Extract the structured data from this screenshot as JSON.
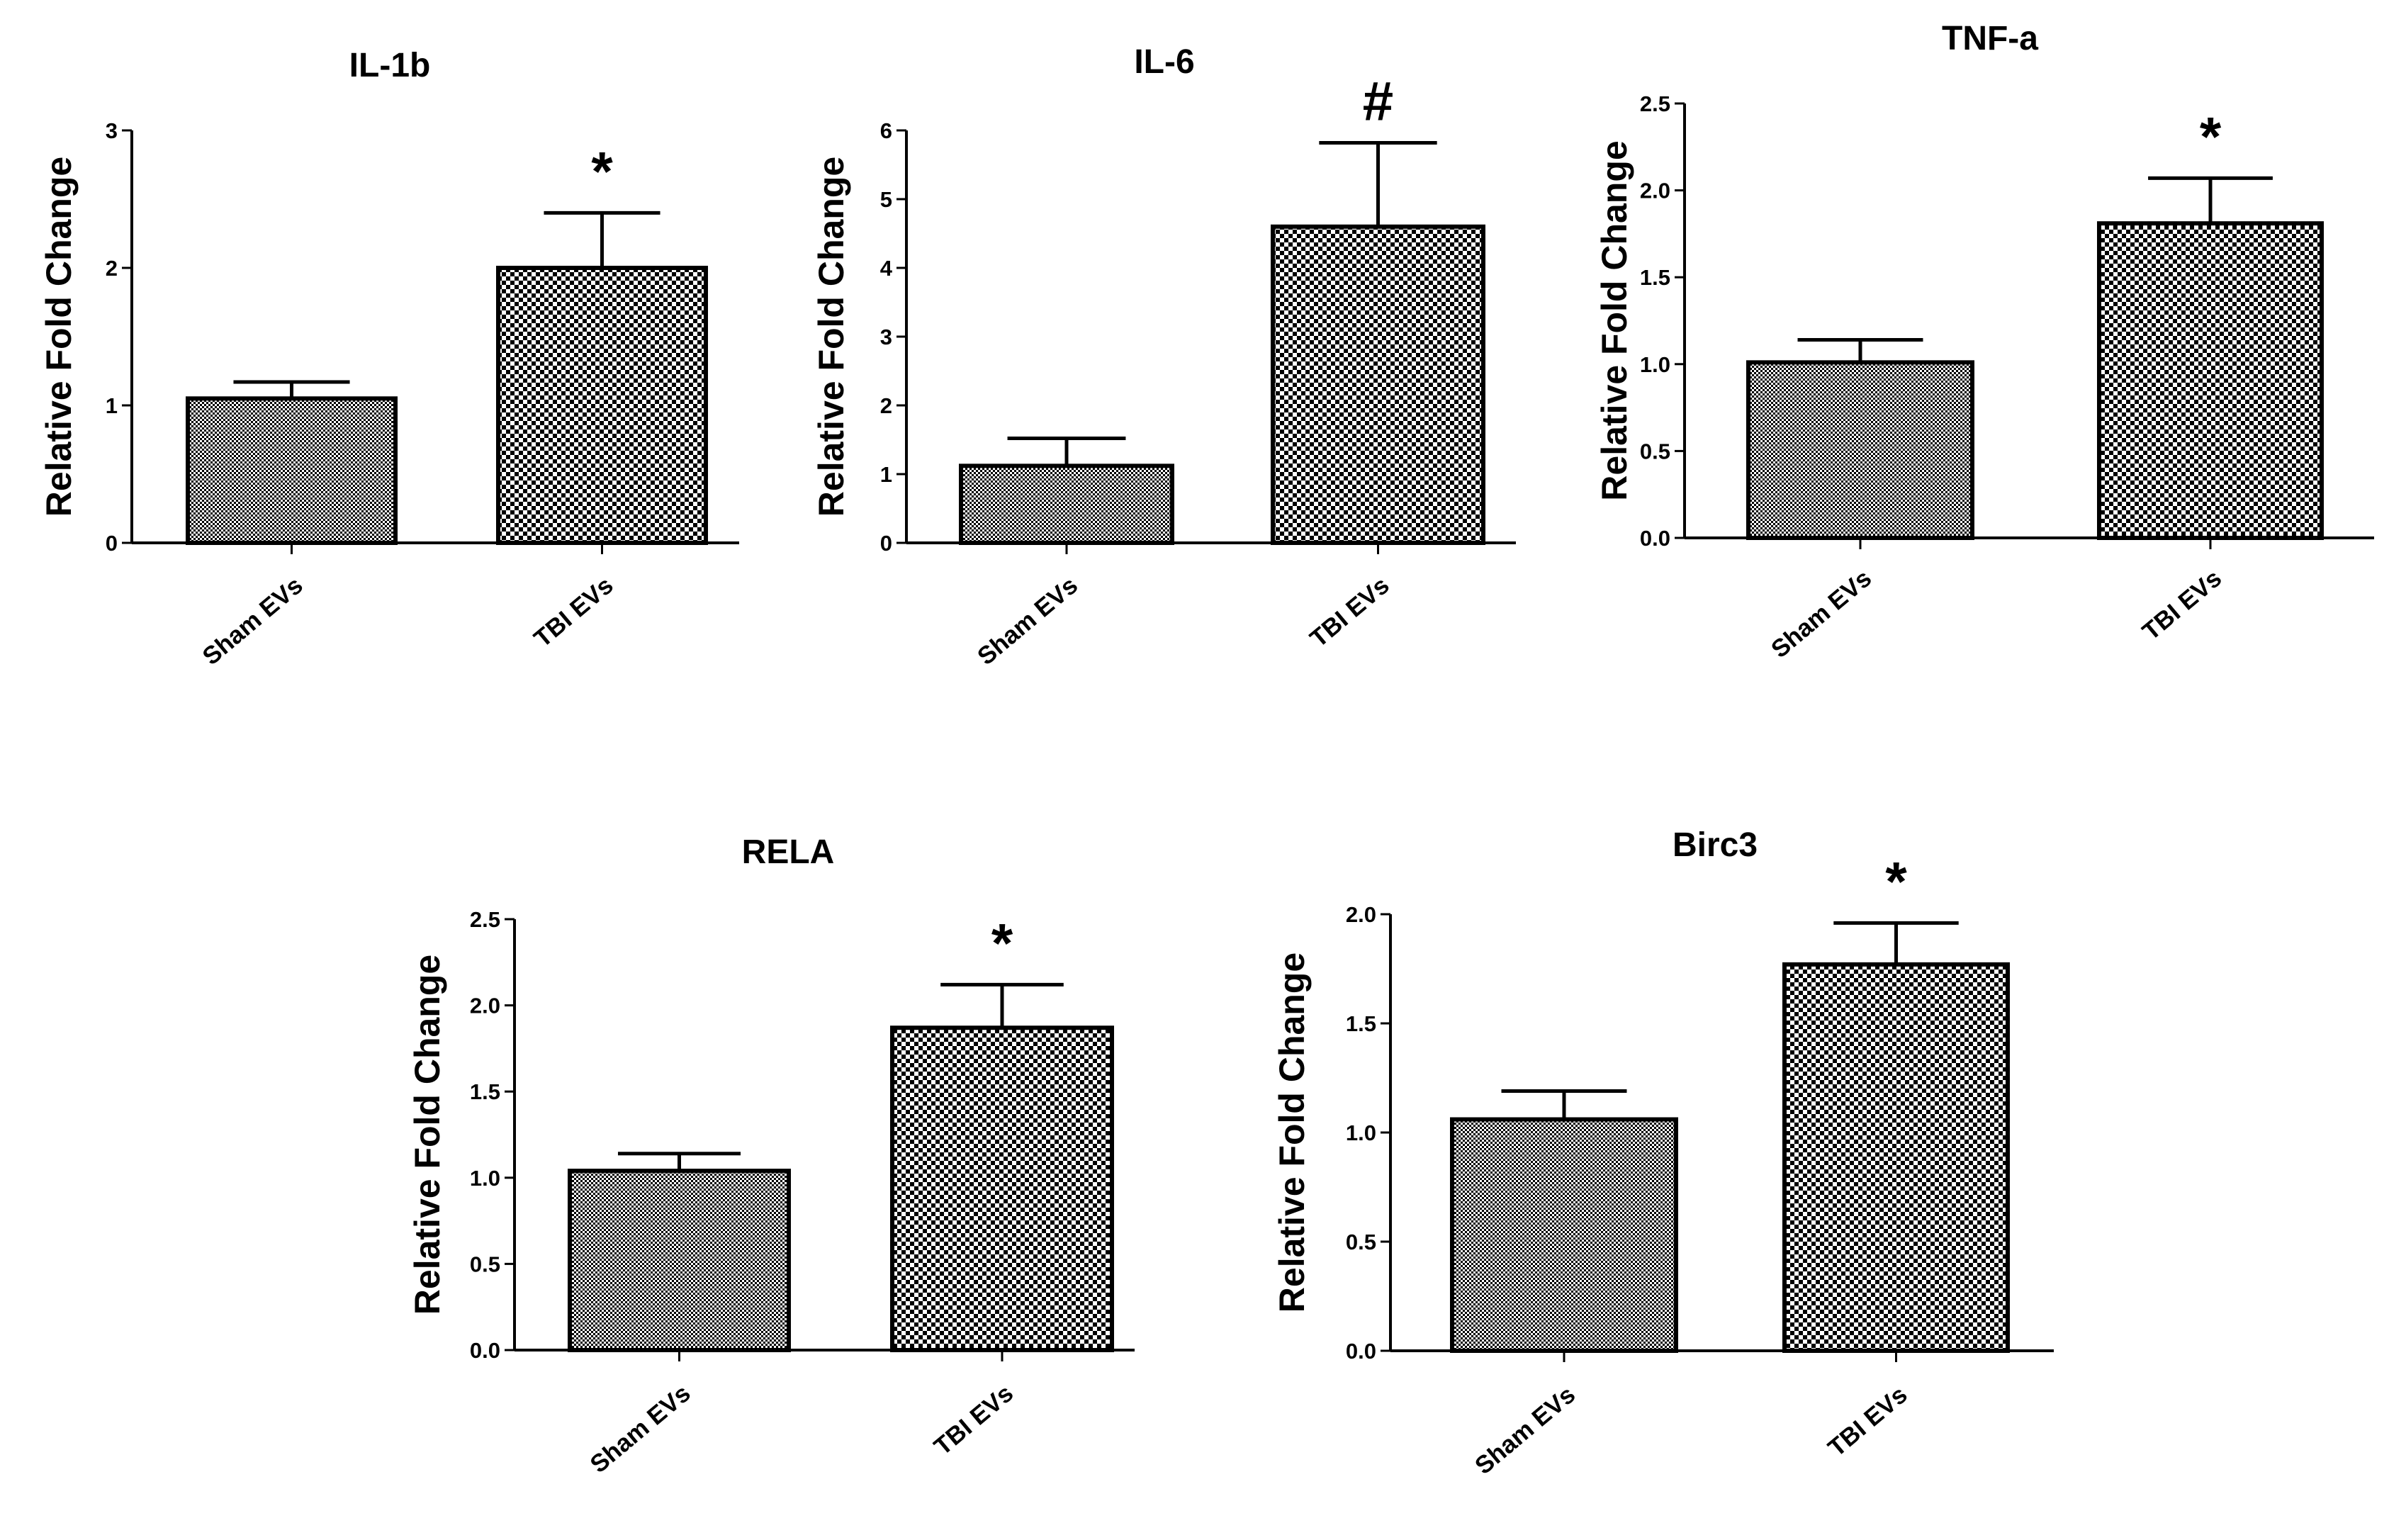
{
  "chart_data": [
    {
      "type": "bar",
      "title": "IL-1b",
      "ylabel": "Relative Fold Change",
      "xlabel": "",
      "ylim": [
        0,
        3
      ],
      "yticks": [
        "0",
        "1",
        "2",
        "3"
      ],
      "categories": [
        "Sham EVs",
        "TBI EVs"
      ],
      "values": [
        1.05,
        2.0
      ],
      "errors": [
        0.12,
        0.4
      ],
      "significance": [
        "",
        "*"
      ],
      "patterns": [
        "fine",
        "coarse"
      ]
    },
    {
      "type": "bar",
      "title": "IL-6",
      "ylabel": "Relative Fold Change",
      "xlabel": "",
      "ylim": [
        0,
        6
      ],
      "yticks": [
        "0",
        "1",
        "2",
        "3",
        "4",
        "5",
        "6"
      ],
      "categories": [
        "Sham EVs",
        "TBI EVs"
      ],
      "values": [
        1.12,
        4.6
      ],
      "errors": [
        0.4,
        1.22
      ],
      "significance": [
        "",
        "#"
      ],
      "patterns": [
        "fine",
        "coarse"
      ]
    },
    {
      "type": "bar",
      "title": "TNF-a",
      "ylabel": "Relative Fold Change",
      "xlabel": "",
      "ylim": [
        0,
        2.5
      ],
      "yticks": [
        "0.0",
        "0.5",
        "1.0",
        "1.5",
        "2.0",
        "2.5"
      ],
      "categories": [
        "Sham EVs",
        "TBI EVs"
      ],
      "values": [
        1.01,
        1.81
      ],
      "errors": [
        0.13,
        0.26
      ],
      "significance": [
        "",
        "*"
      ],
      "patterns": [
        "fine",
        "coarse"
      ]
    },
    {
      "type": "bar",
      "title": "RELA",
      "ylabel": "Relative Fold Change",
      "xlabel": "",
      "ylim": [
        0,
        2.5
      ],
      "yticks": [
        "0.0",
        "0.5",
        "1.0",
        "1.5",
        "2.0",
        "2.5"
      ],
      "categories": [
        "Sham EVs",
        "TBI EVs"
      ],
      "values": [
        1.04,
        1.87
      ],
      "errors": [
        0.1,
        0.25
      ],
      "significance": [
        "",
        "*"
      ],
      "patterns": [
        "fine",
        "coarse"
      ]
    },
    {
      "type": "bar",
      "title": "Birc3",
      "ylabel": "Relative Fold Change",
      "xlabel": "",
      "ylim": [
        0,
        2.0
      ],
      "yticks": [
        "0.0",
        "0.5",
        "1.0",
        "1.5",
        "2.0"
      ],
      "categories": [
        "Sham EVs",
        "TBI EVs"
      ],
      "values": [
        1.06,
        1.77
      ],
      "errors": [
        0.13,
        0.19
      ],
      "significance": [
        "",
        "*"
      ],
      "patterns": [
        "fine",
        "coarse"
      ]
    }
  ]
}
